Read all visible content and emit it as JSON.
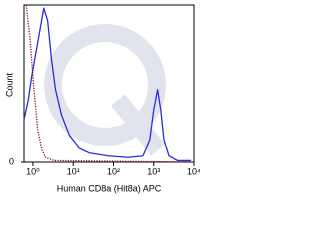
{
  "chart_data": {
    "type": "line",
    "x_label": "Human CD8a (Hit8a) APC",
    "y_label": "Count",
    "xscale": "log",
    "xlim": [
      0.6,
      10000
    ],
    "xticks": [
      {
        "value": 1,
        "label": "10⁰"
      },
      {
        "value": 10,
        "label": "10¹"
      },
      {
        "value": 100,
        "label": "10²"
      },
      {
        "value": 1000,
        "label": "10³"
      },
      {
        "value": 10000,
        "label": "10⁴"
      }
    ],
    "ylim": [
      0,
      100
    ],
    "yticks": [
      0
    ],
    "series": [
      {
        "color": "#2a2ae0",
        "style": "solid",
        "x": [
          0.6,
          0.76,
          0.94,
          1.86,
          2.32,
          2.9,
          3.64,
          5.1,
          8,
          14,
          24.6,
          75,
          232,
          540,
          800,
          1000,
          1250,
          1500,
          1800,
          2400,
          3900,
          8500
        ],
        "values": [
          27,
          39,
          55,
          98,
          90,
          65,
          46,
          30,
          17,
          9,
          6,
          4,
          3,
          4,
          14,
          33,
          46,
          33,
          14,
          4,
          1,
          1
        ]
      },
      {
        "color": "#7a1010",
        "style": "dotted",
        "x": [
          0.68,
          0.85,
          1.06,
          1.32,
          1.66,
          2.07,
          3.4,
          8500
        ],
        "values": [
          100,
          78,
          46,
          20,
          8,
          3,
          1,
          0
        ]
      }
    ]
  }
}
